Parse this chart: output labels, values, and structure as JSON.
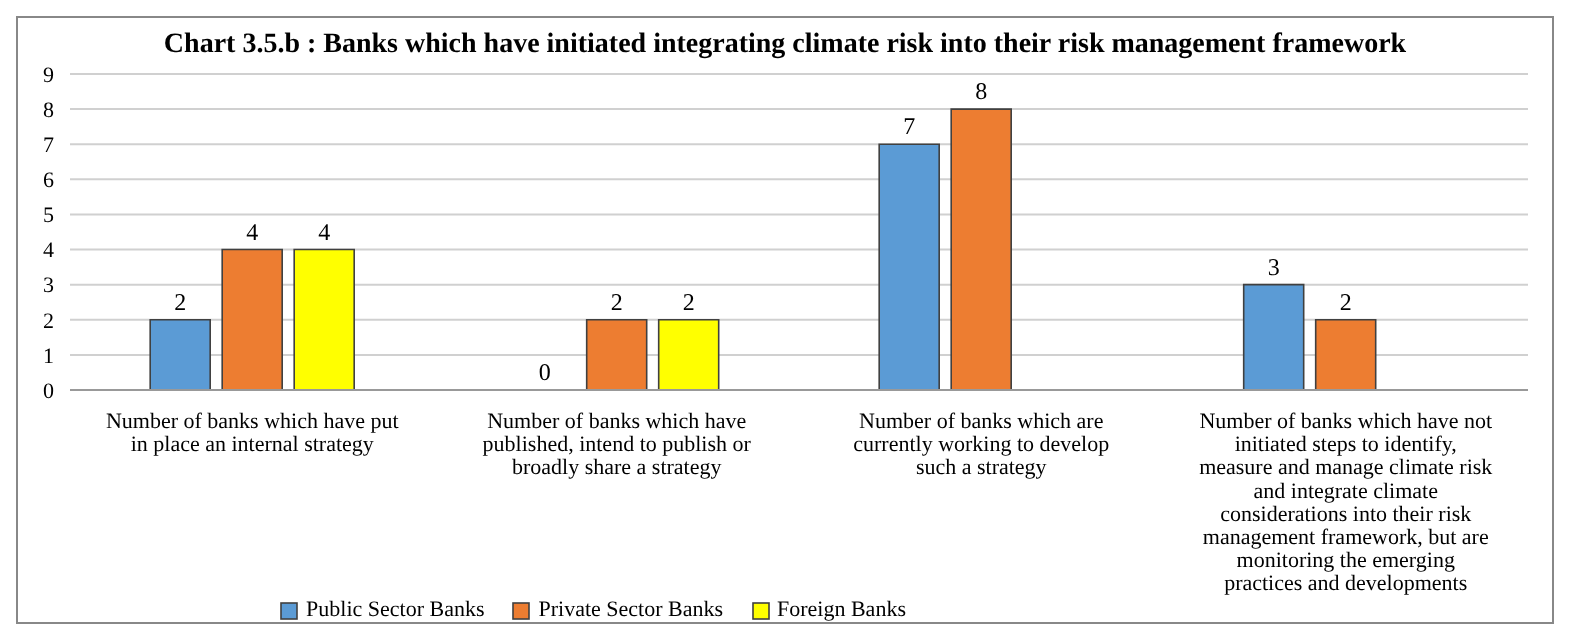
{
  "chart_data": {
    "type": "bar",
    "title": "Chart 3.5.b : Banks which have initiated integrating climate risk into their risk management framework",
    "categories": [
      "Number of banks which have put in place an internal strategy",
      "Number of banks which have published, intend to publish or broadly share a strategy",
      "Number of banks which are currently working to develop such a strategy",
      "Number of banks which have not initiated steps to identify, measure and manage climate risk and integrate climate considerations into their risk management framework, but are monitoring the emerging practices and developments"
    ],
    "series": [
      {
        "name": "Public Sector Banks",
        "color": "#5b9bd5",
        "values": [
          2,
          0,
          7,
          3
        ]
      },
      {
        "name": "Private Sector Banks",
        "color": "#ed7d31",
        "values": [
          4,
          2,
          8,
          2
        ]
      },
      {
        "name": "Foreign Banks",
        "color": "#ffff00",
        "values": [
          4,
          2,
          null,
          null
        ]
      }
    ],
    "ylim": [
      0,
      9
    ],
    "yticks": [
      0,
      1,
      2,
      3,
      4,
      5,
      6,
      7,
      8,
      9
    ],
    "grid": "y",
    "legend": "bottom",
    "data_labels": true
  }
}
